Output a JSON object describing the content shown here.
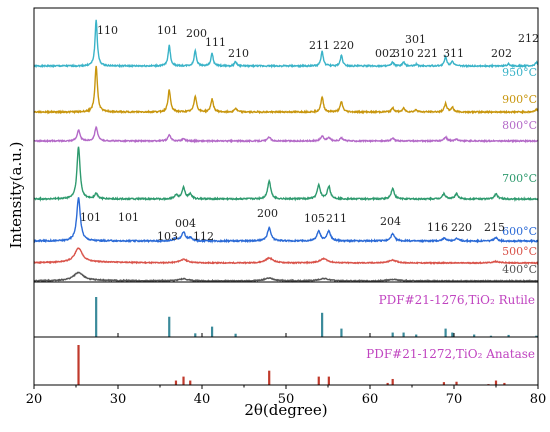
{
  "chart_data": {
    "type": "line",
    "xlabel": "2θ(degree)",
    "ylabel": "Intensity(a.u.)",
    "xlim": [
      20,
      80
    ],
    "xticks": [
      20,
      30,
      40,
      50,
      60,
      70,
      80
    ],
    "y_tick_labels": "none",
    "grid": false,
    "series": [
      {
        "name": "950°C",
        "color": "#3ab3c8",
        "phase": "rutile",
        "peaks": [
          [
            27.4,
            1.0
          ],
          [
            36.1,
            0.45
          ],
          [
            39.2,
            0.34
          ],
          [
            41.2,
            0.27
          ],
          [
            44.0,
            0.09
          ],
          [
            54.3,
            0.32
          ],
          [
            56.6,
            0.23
          ],
          [
            62.7,
            0.08
          ],
          [
            64.0,
            0.08
          ],
          [
            65.5,
            0.04
          ],
          [
            69.0,
            0.2
          ],
          [
            69.8,
            0.11
          ],
          [
            76.5,
            0.05
          ],
          [
            79.8,
            0.08
          ]
        ]
      },
      {
        "name": "900°C",
        "color": "#c8960e",
        "phase": "rutile",
        "peaks": [
          [
            27.4,
            1.0
          ],
          [
            36.1,
            0.48
          ],
          [
            39.2,
            0.35
          ],
          [
            41.2,
            0.28
          ],
          [
            44.0,
            0.08
          ],
          [
            54.3,
            0.32
          ],
          [
            56.6,
            0.22
          ],
          [
            62.7,
            0.09
          ],
          [
            64.0,
            0.08
          ],
          [
            65.5,
            0.05
          ],
          [
            69.0,
            0.18
          ],
          [
            69.8,
            0.1
          ],
          [
            79.8,
            0.06
          ]
        ]
      },
      {
        "name": "800°C",
        "color": "#b46ac8",
        "phase": "mixed",
        "peaks": [
          [
            25.3,
            0.55
          ],
          [
            27.4,
            0.7
          ],
          [
            36.1,
            0.3
          ],
          [
            37.8,
            0.12
          ],
          [
            48.0,
            0.2
          ],
          [
            54.3,
            0.25
          ],
          [
            55.1,
            0.18
          ],
          [
            56.6,
            0.15
          ],
          [
            62.7,
            0.14
          ],
          [
            69.0,
            0.2
          ],
          [
            70.3,
            0.1
          ]
        ]
      },
      {
        "name": "700°C",
        "color": "#2e9a6e",
        "phase": "anatase",
        "peaks": [
          [
            25.3,
            1.0
          ],
          [
            27.4,
            0.1
          ],
          [
            36.9,
            0.08
          ],
          [
            37.8,
            0.22
          ],
          [
            38.6,
            0.09
          ],
          [
            48.0,
            0.35
          ],
          [
            53.9,
            0.26
          ],
          [
            55.1,
            0.24
          ],
          [
            62.7,
            0.2
          ],
          [
            68.8,
            0.1
          ],
          [
            70.3,
            0.1
          ],
          [
            75.0,
            0.1
          ]
        ]
      },
      {
        "name": "600°C",
        "color": "#2b6ad6",
        "phase": "anatase",
        "peaks": [
          [
            25.3,
            1.0
          ],
          [
            36.9,
            0.06
          ],
          [
            37.8,
            0.2
          ],
          [
            38.6,
            0.07
          ],
          [
            48.0,
            0.3
          ],
          [
            53.9,
            0.22
          ],
          [
            55.1,
            0.22
          ],
          [
            62.7,
            0.16
          ],
          [
            68.8,
            0.06
          ],
          [
            70.3,
            0.06
          ],
          [
            75.0,
            0.07
          ]
        ]
      },
      {
        "name": "500°C",
        "color": "#d9534a",
        "phase": "anatase",
        "peaks": [
          [
            25.3,
            1.0
          ],
          [
            37.8,
            0.25
          ],
          [
            48.0,
            0.35
          ],
          [
            54.5,
            0.3
          ],
          [
            62.7,
            0.2
          ],
          [
            75.0,
            0.1
          ]
        ]
      },
      {
        "name": "400°C",
        "color": "#555555",
        "phase": "anatase",
        "peaks": [
          [
            25.3,
            1.0
          ],
          [
            37.8,
            0.25
          ],
          [
            48.0,
            0.35
          ],
          [
            54.5,
            0.3
          ],
          [
            62.7,
            0.2
          ]
        ]
      }
    ],
    "reference_patterns": [
      {
        "name": "PDF#21-1276,TiO₂ Rutile",
        "color": "#3a8a9a",
        "sticks": [
          [
            27.4,
            1.0
          ],
          [
            36.1,
            0.5
          ],
          [
            39.2,
            0.08
          ],
          [
            41.2,
            0.25
          ],
          [
            44.0,
            0.07
          ],
          [
            54.3,
            0.6
          ],
          [
            56.6,
            0.2
          ],
          [
            62.7,
            0.1
          ],
          [
            64.0,
            0.1
          ],
          [
            65.5,
            0.05
          ],
          [
            69.0,
            0.2
          ],
          [
            69.8,
            0.1
          ],
          [
            72.4,
            0.05
          ],
          [
            74.4,
            0.02
          ],
          [
            76.5,
            0.04
          ],
          [
            79.8,
            0.02
          ]
        ]
      },
      {
        "name": "PDF#21-1272,TiO₂ Anatase",
        "color": "#c0392b",
        "sticks": [
          [
            25.3,
            1.0
          ],
          [
            36.9,
            0.1
          ],
          [
            37.8,
            0.2
          ],
          [
            38.6,
            0.1
          ],
          [
            48.0,
            0.35
          ],
          [
            53.9,
            0.2
          ],
          [
            55.1,
            0.2
          ],
          [
            62.1,
            0.04
          ],
          [
            62.7,
            0.14
          ],
          [
            68.8,
            0.06
          ],
          [
            70.3,
            0.07
          ],
          [
            74.1,
            0.01
          ],
          [
            75.0,
            0.1
          ],
          [
            76.0,
            0.04
          ]
        ]
      }
    ],
    "annotations": {
      "rutile_hkl": [
        {
          "text": "110",
          "x": 27.4
        },
        {
          "text": "101",
          "x": 36.1
        },
        {
          "text": "200",
          "x": 39.2
        },
        {
          "text": "111",
          "x": 41.2
        },
        {
          "text": "210",
          "x": 44.0
        },
        {
          "text": "211",
          "x": 54.3
        },
        {
          "text": "220",
          "x": 56.6
        },
        {
          "text": "002",
          "x": 62.7
        },
        {
          "text": "310",
          "x": 64.0
        },
        {
          "text": "221",
          "x": 65.5
        },
        {
          "text": "301",
          "x": 69.0
        },
        {
          "text": "311",
          "x": 69.8
        },
        {
          "text": "202",
          "x": 76.5
        },
        {
          "text": "212",
          "x": 79.8
        }
      ],
      "anatase_hkl": [
        {
          "text": "101",
          "x": 25.3
        },
        {
          "text": "101",
          "x": 29.0
        },
        {
          "text": "103",
          "x": 36.9
        },
        {
          "text": "004",
          "x": 37.8
        },
        {
          "text": "112",
          "x": 38.6
        },
        {
          "text": "200",
          "x": 48.0
        },
        {
          "text": "105",
          "x": 53.9
        },
        {
          "text": "211",
          "x": 55.1
        },
        {
          "text": "204",
          "x": 62.7
        },
        {
          "text": "116",
          "x": 68.8
        },
        {
          "text": "220",
          "x": 70.3
        },
        {
          "text": "215",
          "x": 75.0
        }
      ]
    }
  }
}
